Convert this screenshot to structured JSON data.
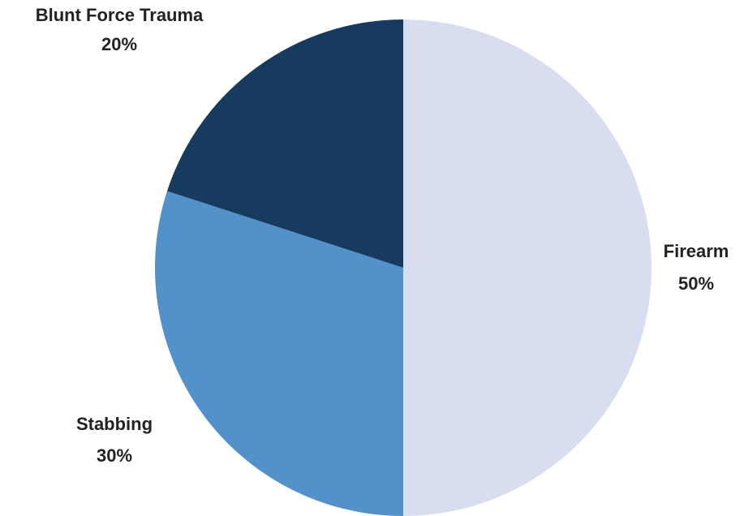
{
  "chart_data": {
    "type": "pie",
    "title": "",
    "slices": [
      {
        "label": "Firearm",
        "value": 50,
        "value_label": "50%",
        "color": "#d8deef"
      },
      {
        "label": "Stabbing",
        "value": 30,
        "value_label": "30%",
        "color": "#5291c9"
      },
      {
        "label": "Blunt Force Trauma",
        "value": 20,
        "value_label": "20%",
        "color": "#173a5f"
      }
    ],
    "start": "12 o'clock",
    "direction": "clockwise",
    "legend": "none",
    "labels": "outside slices"
  }
}
